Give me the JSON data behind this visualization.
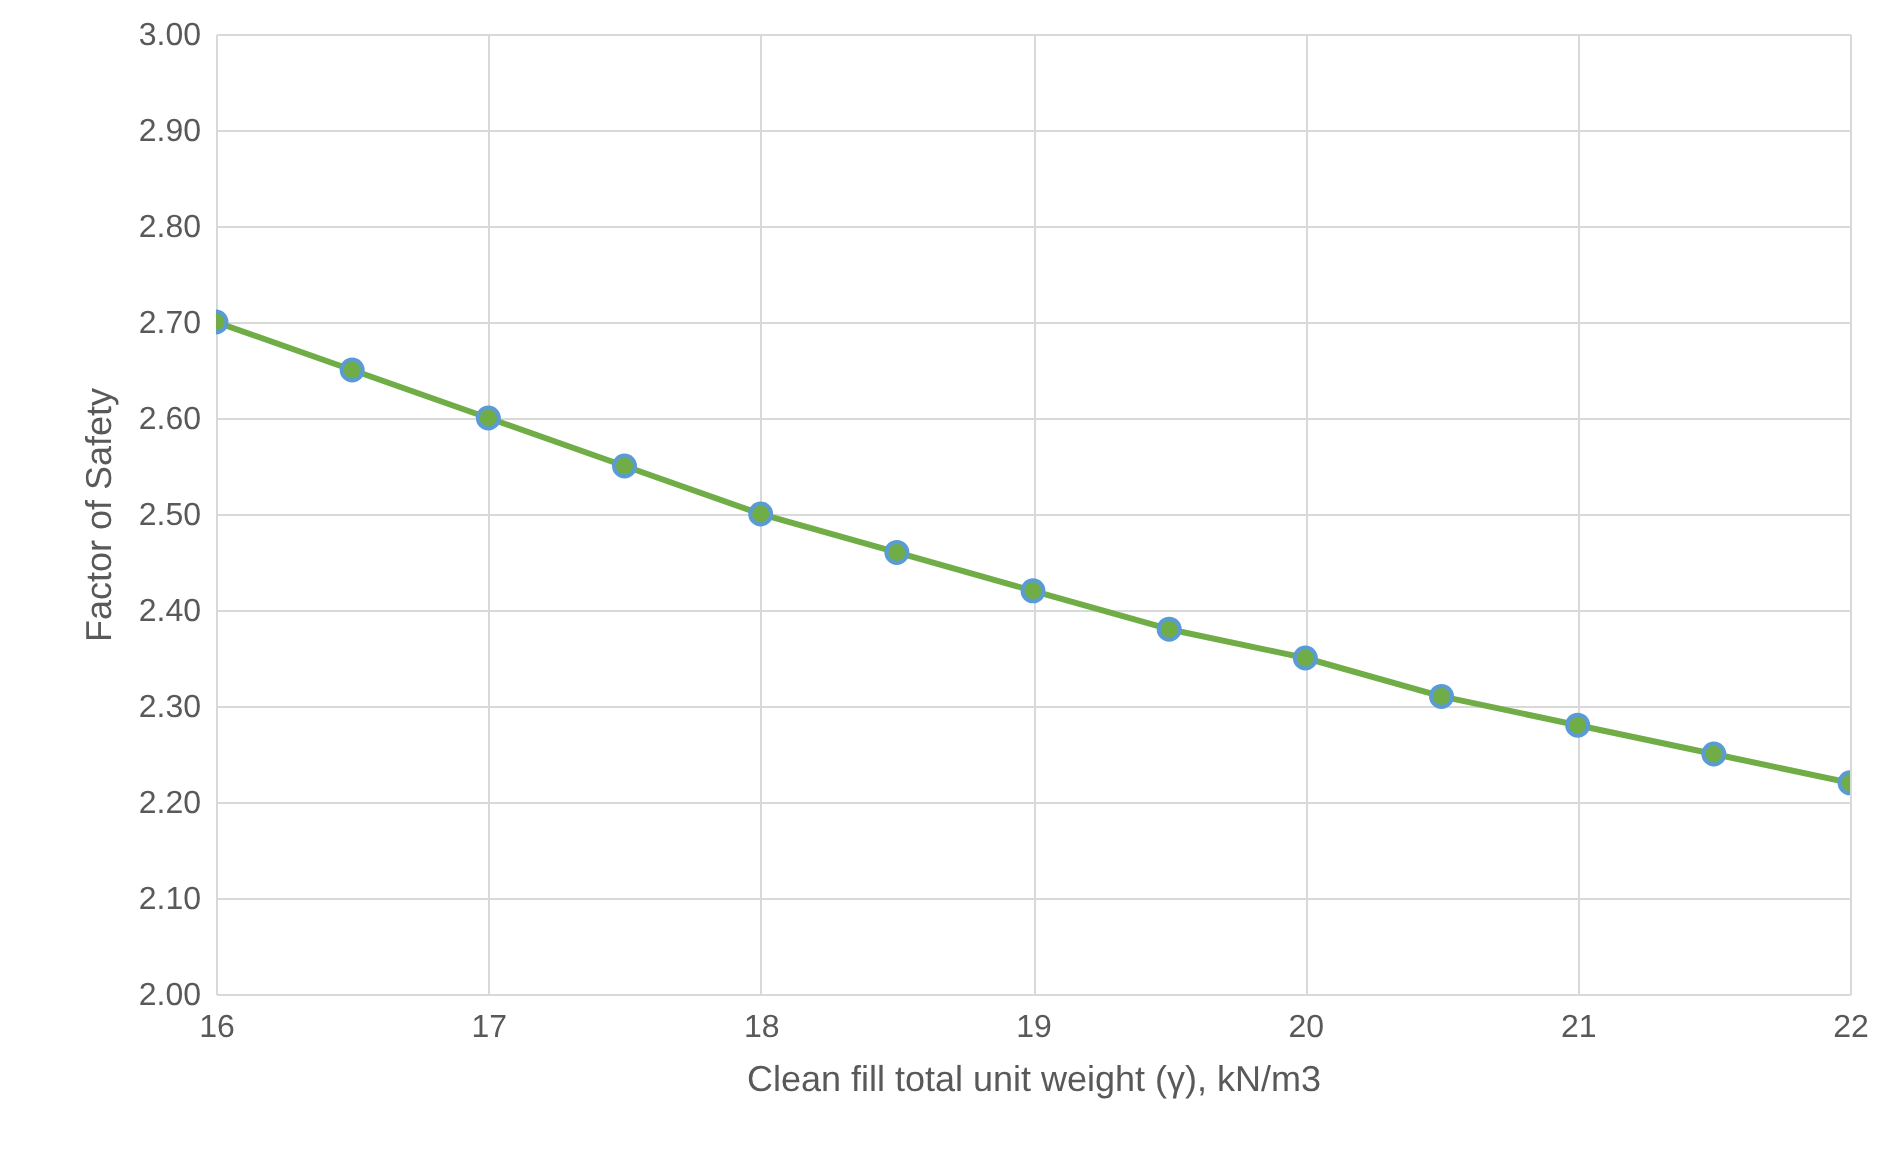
{
  "chart_data": {
    "type": "line",
    "xlabel": "Clean fill total unit weight (γ), kN/m3",
    "ylabel": "Factor of Safety",
    "x": [
      16,
      16.5,
      17,
      17.5,
      18,
      18.5,
      19,
      19.5,
      20,
      20.5,
      21,
      21.5,
      22
    ],
    "series": [
      {
        "color": "#70ad47",
        "values": [
          2.7,
          2.65,
          2.6,
          2.55,
          2.5,
          2.46,
          2.42,
          2.38,
          2.35,
          2.31,
          2.28,
          2.25,
          2.22
        ]
      }
    ],
    "xlim": [
      16,
      22
    ],
    "xticks": [
      16,
      17,
      18,
      19,
      20,
      21,
      22
    ],
    "ylim": [
      2,
      3
    ],
    "yticks": [
      {
        "value": 2,
        "label": "2.00"
      },
      {
        "value": 2.1,
        "label": "2.10"
      },
      {
        "value": 2.2,
        "label": "2.20"
      },
      {
        "value": 2.3,
        "label": "2.30"
      },
      {
        "value": 2.4,
        "label": "2.40"
      },
      {
        "value": 2.5,
        "label": "2.50"
      },
      {
        "value": 2.6,
        "label": "2.60"
      },
      {
        "value": 2.7,
        "label": "2.70"
      },
      {
        "value": 2.8,
        "label": "2.80"
      },
      {
        "value": 2.9,
        "label": "2.90"
      },
      {
        "value": 3,
        "label": "3.00"
      }
    ],
    "grid": true,
    "marker": "circle",
    "line_style": "solid"
  }
}
